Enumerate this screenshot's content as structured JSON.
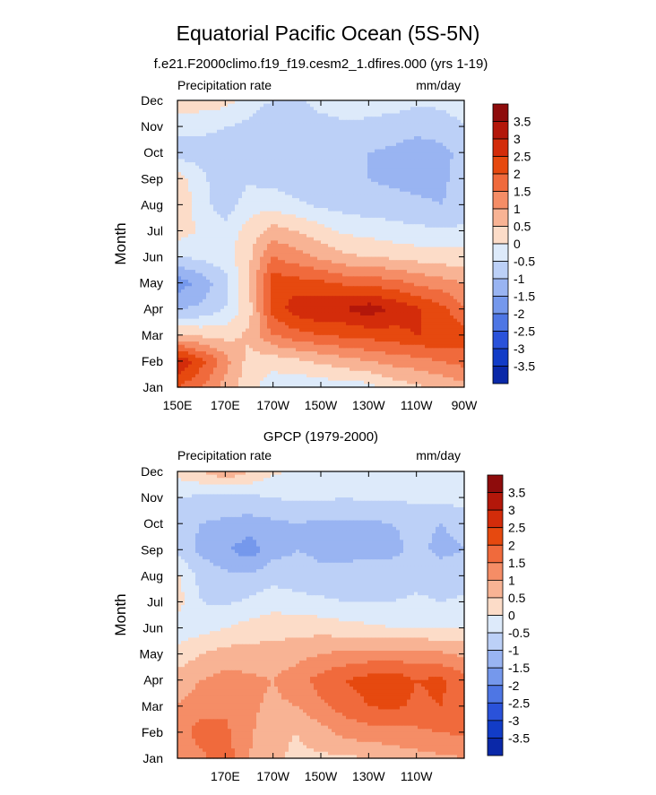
{
  "figure": {
    "title": "Equatorial Pacific Ocean (5S-5N)",
    "subtitle": "f.e21.F2000climo.f19_f19.cesm2_1.dfires.000 (yrs 1-19)"
  },
  "colorbar": {
    "levels": [
      "3.5",
      "3",
      "2.5",
      "2",
      "1.5",
      "1",
      "0.5",
      "0",
      "-0.5",
      "-1",
      "-1.5",
      "-2",
      "-2.5",
      "-3",
      "-3.5"
    ],
    "colors": [
      "#8e0c0c",
      "#b3170a",
      "#d32c0a",
      "#e6490f",
      "#f06a3c",
      "#f58d66",
      "#f8b394",
      "#fcdcc8",
      "#ddeafa",
      "#bcd0f7",
      "#99b4f2",
      "#7598ec",
      "#4e76e4",
      "#2a52da",
      "#123cc7",
      "#0a28a8"
    ]
  },
  "chart_data": [
    {
      "type": "heatmap",
      "title": "",
      "left_label": "Precipitation rate",
      "right_label": "mm/day",
      "ylabel": "Month",
      "xlabel": "",
      "x": [
        150,
        160,
        170,
        180,
        190,
        200,
        210,
        220,
        230,
        240,
        250,
        260,
        270
      ],
      "xlim": [
        150,
        270
      ],
      "xticks": [
        {
          "value": 150,
          "label": "150E"
        },
        {
          "value": 170,
          "label": "170E"
        },
        {
          "value": 190,
          "label": "170W"
        },
        {
          "value": 210,
          "label": "150W"
        },
        {
          "value": 230,
          "label": "130W"
        },
        {
          "value": 250,
          "label": "110W"
        },
        {
          "value": 270,
          "label": "90W"
        }
      ],
      "months": [
        "Jan",
        "Feb",
        "Mar",
        "Apr",
        "May",
        "Jun",
        "Jul",
        "Aug",
        "Sep",
        "Oct",
        "Nov",
        "Dec"
      ],
      "z": [
        [
          2.0,
          1.5,
          0.8,
          0.2,
          -0.3,
          -0.4,
          -0.3,
          -0.3,
          -0.2,
          0.2,
          0.4,
          0.6,
          0.8
        ],
        [
          3.0,
          2.2,
          1.2,
          0.3,
          0.2,
          0.4,
          0.6,
          0.8,
          1.0,
          1.2,
          1.3,
          1.5,
          1.7
        ],
        [
          0.5,
          0.4,
          0.3,
          0.6,
          1.5,
          1.8,
          2.0,
          2.1,
          2.2,
          2.3,
          2.5,
          2.5,
          2.3
        ],
        [
          -1.0,
          -0.9,
          -0.5,
          0.3,
          2.2,
          2.8,
          3.0,
          3.0,
          3.3,
          2.9,
          2.6,
          2.2,
          1.5
        ],
        [
          -1.8,
          -1.3,
          -0.7,
          0.5,
          2.3,
          2.2,
          2.1,
          1.9,
          1.8,
          1.7,
          1.4,
          1.2,
          1.0
        ],
        [
          -0.5,
          -0.4,
          -0.2,
          0.4,
          1.5,
          1.2,
          0.9,
          0.6,
          0.5,
          0.4,
          0.3,
          0.2,
          0.2
        ],
        [
          0.3,
          -0.1,
          -0.3,
          0.2,
          0.7,
          0.5,
          0.2,
          -0.1,
          -0.2,
          -0.3,
          -0.4,
          -0.4,
          -0.4
        ],
        [
          0.5,
          -0.3,
          -0.8,
          -0.2,
          -0.2,
          -0.4,
          -0.6,
          -0.7,
          -0.8,
          -0.8,
          -0.9,
          -1.0,
          -0.9
        ],
        [
          0.3,
          -0.4,
          -0.8,
          -0.6,
          -0.7,
          -0.8,
          -0.8,
          -0.9,
          -1.0,
          -1.1,
          -1.2,
          -1.1,
          -0.8
        ],
        [
          -0.8,
          -0.7,
          -0.6,
          -0.7,
          -0.8,
          -0.9,
          -0.9,
          -0.9,
          -1.0,
          -1.1,
          -1.3,
          -1.2,
          -0.8
        ],
        [
          -0.3,
          -0.4,
          -0.5,
          -0.6,
          -0.9,
          -0.8,
          -0.7,
          -0.6,
          -0.6,
          -0.7,
          -0.8,
          -0.7,
          -0.5
        ],
        [
          0.4,
          0.3,
          0.2,
          -0.3,
          -0.5,
          -0.6,
          -0.3,
          -0.2,
          -0.3,
          -0.3,
          -0.4,
          -0.4,
          -0.3
        ]
      ]
    },
    {
      "type": "heatmap",
      "title": "GPCP (1979-2000)",
      "left_label": "Precipitation rate",
      "right_label": "mm/day",
      "ylabel": "Month",
      "xlabel": "",
      "x": [
        150,
        160,
        170,
        180,
        190,
        200,
        210,
        220,
        230,
        240,
        250,
        260,
        270
      ],
      "xlim": [
        150,
        270
      ],
      "xticks": [
        {
          "value": 170,
          "label": "170E"
        },
        {
          "value": 190,
          "label": "170W"
        },
        {
          "value": 210,
          "label": "150W"
        },
        {
          "value": 230,
          "label": "130W"
        },
        {
          "value": 250,
          "label": "110W"
        }
      ],
      "months": [
        "Jan",
        "Feb",
        "Mar",
        "Apr",
        "May",
        "Jun",
        "Jul",
        "Aug",
        "Sep",
        "Oct",
        "Nov",
        "Dec"
      ],
      "z": [
        [
          1.2,
          1.4,
          1.8,
          1.0,
          0.6,
          0.4,
          0.4,
          0.4,
          0.5,
          0.7,
          0.8,
          0.9,
          1.0
        ],
        [
          1.3,
          1.7,
          1.6,
          1.1,
          0.6,
          0.5,
          0.8,
          1.2,
          1.3,
          1.3,
          1.4,
          1.5,
          1.6
        ],
        [
          1.0,
          1.3,
          1.4,
          1.1,
          0.9,
          1.0,
          1.4,
          1.7,
          2.0,
          2.1,
          1.9,
          2.0,
          1.8
        ],
        [
          0.7,
          1.0,
          1.2,
          1.1,
          1.0,
          1.3,
          1.7,
          2.0,
          2.2,
          2.3,
          2.0,
          2.1,
          1.7
        ],
        [
          0.2,
          0.5,
          0.7,
          0.7,
          0.7,
          0.8,
          1.0,
          1.1,
          1.2,
          1.2,
          1.2,
          1.1,
          0.9
        ],
        [
          -0.3,
          -0.2,
          0.0,
          0.2,
          0.3,
          0.3,
          0.3,
          0.2,
          0.1,
          0.0,
          0.0,
          0.0,
          0.0
        ],
        [
          0.2,
          -0.5,
          -0.6,
          -0.4,
          -0.2,
          -0.3,
          -0.4,
          -0.5,
          -0.5,
          -0.5,
          -0.4,
          -0.5,
          -0.4
        ],
        [
          0.1,
          -0.7,
          -0.9,
          -0.9,
          -0.7,
          -0.8,
          -0.9,
          -0.9,
          -0.8,
          -0.8,
          -0.7,
          -0.8,
          -0.8
        ],
        [
          -0.7,
          -1.1,
          -1.4,
          -1.8,
          -1.2,
          -1.0,
          -1.1,
          -1.1,
          -1.1,
          -1.1,
          -0.9,
          -1.1,
          -1.0
        ],
        [
          -0.9,
          -1.0,
          -1.1,
          -1.2,
          -1.1,
          -1.0,
          -1.1,
          -1.1,
          -1.1,
          -1.0,
          -0.9,
          -1.0,
          -0.9
        ],
        [
          -0.5,
          -0.6,
          -0.7,
          -0.6,
          -0.5,
          -0.4,
          -0.4,
          -0.5,
          -0.4,
          -0.4,
          -0.4,
          -0.3,
          -0.3
        ],
        [
          0.2,
          0.5,
          0.9,
          0.5,
          0.1,
          -0.1,
          -0.2,
          -0.2,
          -0.2,
          -0.2,
          -0.2,
          -0.1,
          -0.1
        ]
      ]
    }
  ]
}
